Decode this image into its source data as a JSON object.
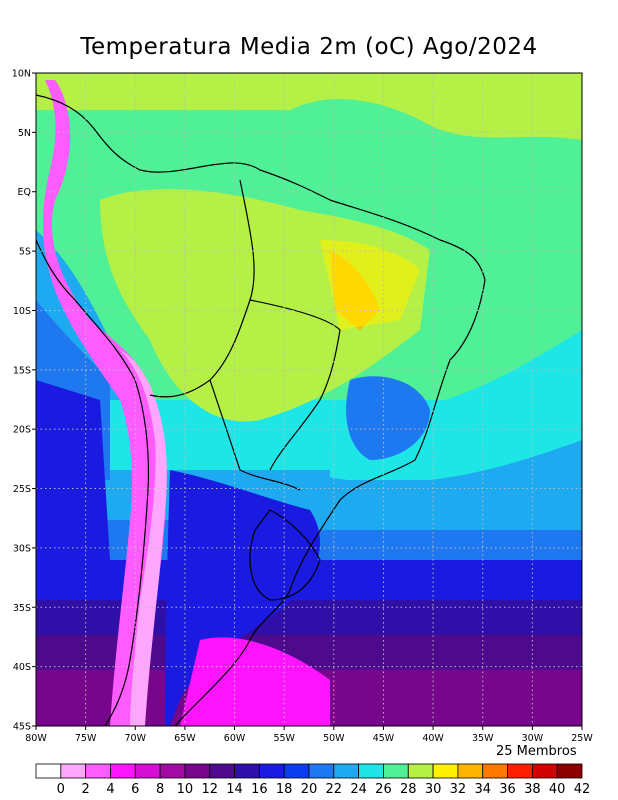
{
  "title": "Temperatura Media 2m (oC) Ago/2024",
  "members_label": "25 Membros",
  "lat_ticks": [
    "10N",
    "5N",
    "EQ",
    "5S",
    "10S",
    "15S",
    "20S",
    "25S",
    "30S",
    "35S",
    "40S",
    "45S"
  ],
  "lon_ticks": [
    "80W",
    "75W",
    "70W",
    "65W",
    "60W",
    "55W",
    "50W",
    "45W",
    "40W",
    "35W",
    "30W",
    "25W"
  ],
  "colorbar": {
    "labels": [
      "0",
      "2",
      "4",
      "6",
      "8",
      "10",
      "12",
      "14",
      "16",
      "18",
      "20",
      "22",
      "24",
      "26",
      "28",
      "30",
      "32",
      "34",
      "36",
      "38",
      "40",
      "42"
    ],
    "colors": [
      "#ffffff",
      "#ffa6ff",
      "#ff5cff",
      "#ff14ff",
      "#d60fd6",
      "#a30aa3",
      "#78068c",
      "#4d0a8c",
      "#2f0fa8",
      "#1a1ae0",
      "#0a3cf0",
      "#1e78f0",
      "#1eaaf0",
      "#1ee6e6",
      "#50f096",
      "#b4f046",
      "#fff000",
      "#ffb400",
      "#ff7800",
      "#ff1e00",
      "#d20000",
      "#8c0000"
    ]
  },
  "chart_data": {
    "type": "map",
    "title": "Temperatura Media 2m (oC) Ago/2024",
    "variable": "Temperatura Media 2m",
    "units": "oC",
    "period": "Ago/2024",
    "ensemble": "25 Membros",
    "lon_range": [
      -80,
      -25
    ],
    "lat_range": [
      -45,
      10
    ],
    "grid": true,
    "colorbar_levels": [
      0,
      2,
      4,
      6,
      8,
      10,
      12,
      14,
      16,
      18,
      20,
      22,
      24,
      26,
      28,
      30,
      32,
      34,
      36,
      38,
      40,
      42
    ]
  }
}
